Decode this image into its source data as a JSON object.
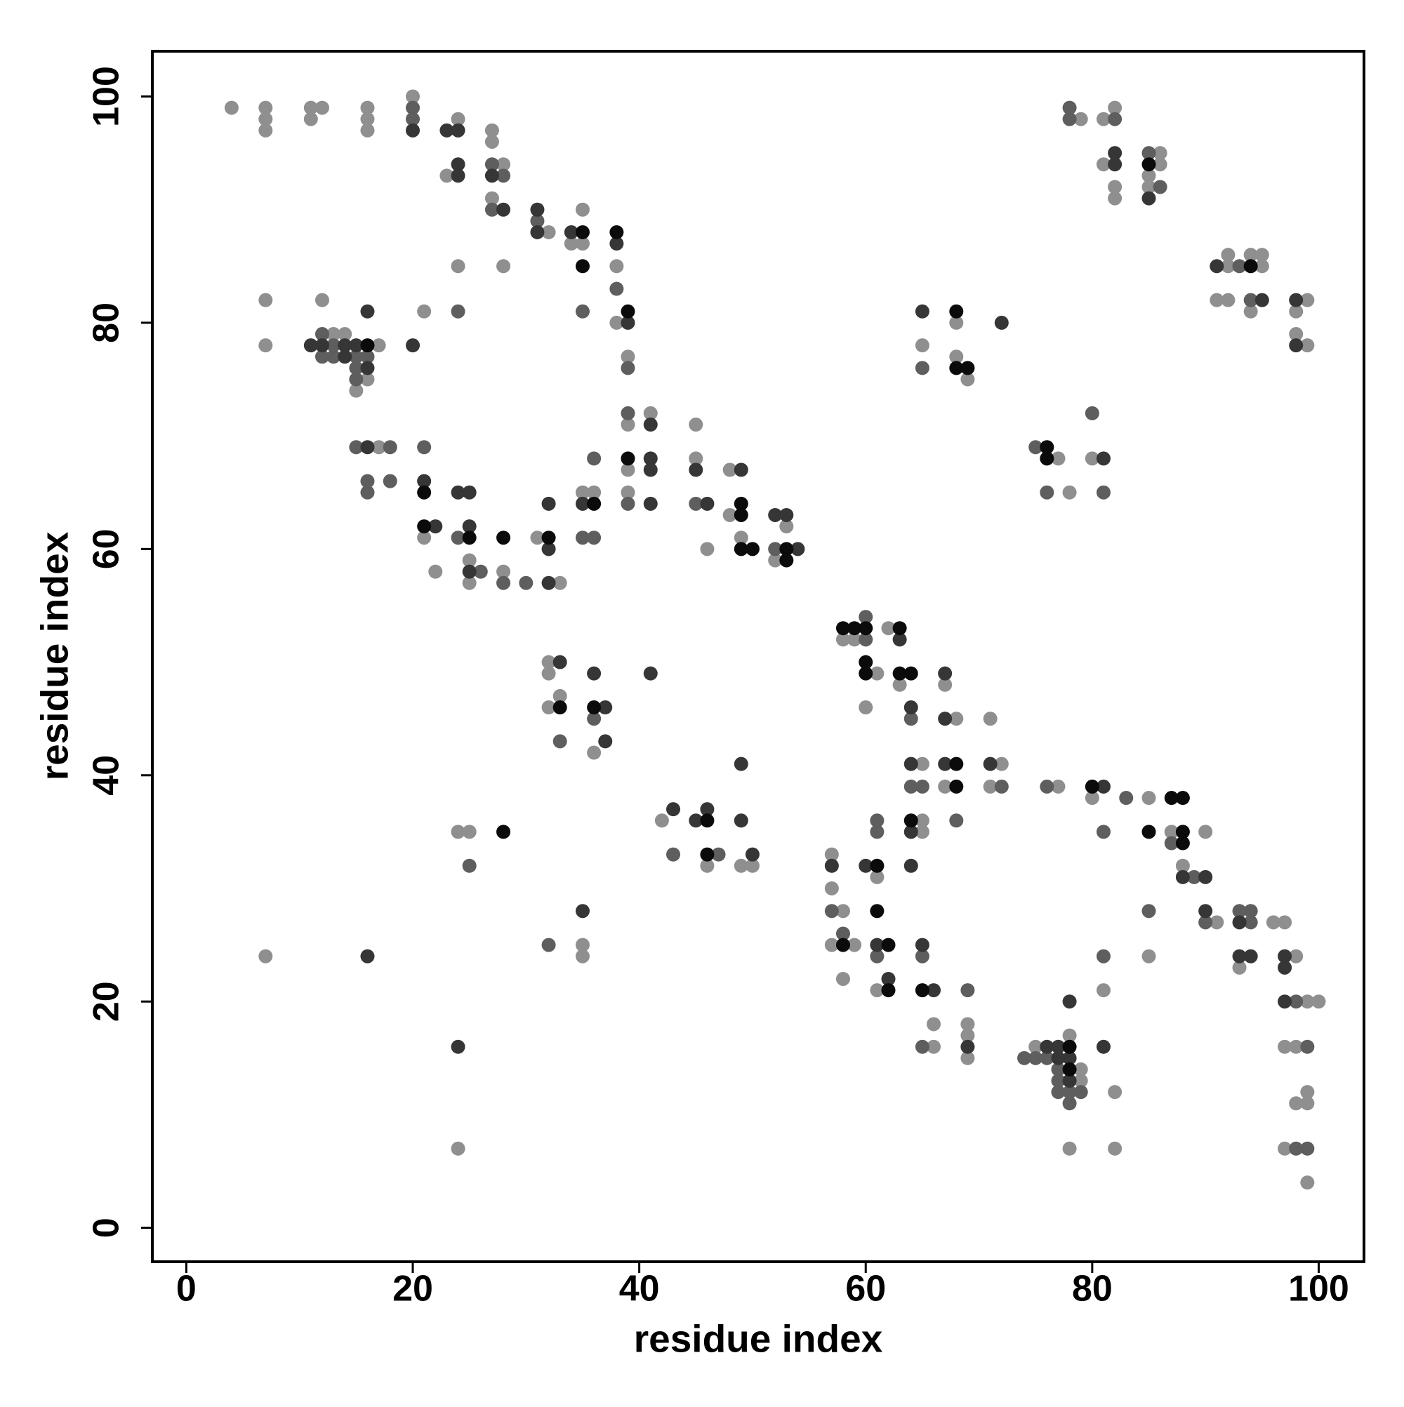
{
  "chart_data": {
    "type": "scatter",
    "xlabel": "residue index",
    "ylabel": "residue index",
    "xlim": [
      -3,
      104
    ],
    "ylim": [
      -3,
      104
    ],
    "xticks": [
      0,
      20,
      40,
      60,
      80,
      100
    ],
    "yticks": [
      0,
      20,
      40,
      60,
      80,
      100
    ],
    "series": [
      {
        "color": "#8f8f8f",
        "x": [
          4,
          7,
          7,
          7,
          11,
          11,
          12,
          16,
          16,
          16,
          20,
          24,
          23,
          27,
          27,
          28,
          27,
          32,
          35,
          34,
          35,
          38,
          38,
          39,
          24,
          28,
          7,
          7,
          12,
          21,
          17,
          13,
          14,
          15,
          16,
          17,
          21,
          22,
          25,
          25,
          28,
          31,
          33,
          35,
          36,
          39,
          39,
          39,
          41,
          45,
          45,
          46,
          48,
          48,
          49,
          53,
          52,
          32,
          32,
          33,
          32,
          36,
          24,
          25,
          42,
          46,
          49,
          50,
          7,
          35,
          35,
          24,
          58,
          59,
          61,
          60,
          62,
          63,
          67,
          68,
          71,
          65,
          67,
          72,
          71,
          65,
          65,
          57,
          57,
          61,
          58,
          57,
          59,
          58,
          61,
          66,
          66,
          69,
          69,
          69,
          77,
          80,
          85,
          87,
          90,
          88,
          91,
          96,
          97,
          93,
          98,
          99,
          100,
          97,
          98,
          99,
          98,
          99,
          97,
          99,
          85,
          81,
          82,
          82,
          78,
          75,
          78,
          79,
          79,
          68,
          65,
          68,
          69,
          77,
          78,
          80,
          79,
          81,
          82,
          81,
          82,
          82,
          86,
          86,
          85,
          85,
          92,
          92,
          94,
          95,
          95,
          91,
          92,
          94,
          99,
          98,
          98,
          99
        ],
        "y": [
          99,
          99,
          98,
          97,
          99,
          98,
          99,
          99,
          98,
          97,
          100,
          98,
          93,
          97,
          96,
          94,
          91,
          88,
          90,
          87,
          87,
          85,
          80,
          77,
          85,
          85,
          82,
          78,
          82,
          81,
          78,
          79,
          79,
          74,
          75,
          69,
          61,
          58,
          59,
          57,
          58,
          61,
          57,
          65,
          65,
          71,
          67,
          65,
          72,
          71,
          68,
          60,
          67,
          63,
          61,
          62,
          59,
          50,
          49,
          47,
          46,
          42,
          35,
          35,
          36,
          32,
          32,
          32,
          24,
          25,
          24,
          7,
          52,
          52,
          49,
          46,
          53,
          48,
          48,
          45,
          45,
          41,
          39,
          41,
          39,
          36,
          35,
          33,
          30,
          31,
          28,
          25,
          25,
          22,
          21,
          18,
          16,
          18,
          17,
          15,
          39,
          38,
          38,
          35,
          35,
          32,
          27,
          27,
          27,
          23,
          24,
          20,
          20,
          16,
          16,
          12,
          11,
          11,
          7,
          4,
          24,
          21,
          12,
          7,
          7,
          16,
          17,
          14,
          13,
          80,
          78,
          77,
          75,
          68,
          65,
          68,
          98,
          98,
          99,
          94,
          92,
          91,
          95,
          94,
          93,
          92,
          86,
          85,
          86,
          86,
          85,
          82,
          82,
          81,
          82,
          81,
          79,
          78
        ]
      },
      {
        "color": "#5e5e5e",
        "x": [
          20,
          20,
          27,
          28,
          27,
          31,
          38,
          39,
          24,
          35,
          12,
          12,
          13,
          13,
          15,
          15,
          15,
          16,
          15,
          18,
          16,
          18,
          16,
          21,
          24,
          26,
          28,
          30,
          36,
          35,
          36,
          39,
          39,
          45,
          52,
          33,
          36,
          25,
          43,
          47,
          32,
          60,
          60,
          64,
          64,
          65,
          72,
          68,
          61,
          61,
          57,
          58,
          61,
          65,
          65,
          69,
          76,
          83,
          81,
          87,
          89,
          85,
          90,
          93,
          94,
          94,
          98,
          99,
          98,
          99,
          81,
          74,
          75,
          76,
          78,
          78,
          77,
          77,
          77,
          79,
          65,
          75,
          76,
          80,
          81,
          78,
          78,
          82,
          85,
          86,
          93,
          94
        ],
        "y": [
          99,
          98,
          94,
          93,
          90,
          89,
          83,
          76,
          81,
          81,
          79,
          77,
          78,
          77,
          77,
          76,
          75,
          77,
          69,
          69,
          66,
          66,
          65,
          69,
          61,
          58,
          57,
          57,
          68,
          61,
          61,
          72,
          64,
          64,
          60,
          43,
          45,
          32,
          33,
          33,
          25,
          54,
          52,
          45,
          39,
          39,
          39,
          36,
          36,
          35,
          28,
          26,
          24,
          24,
          16,
          21,
          39,
          38,
          35,
          34,
          31,
          28,
          27,
          28,
          28,
          27,
          20,
          16,
          7,
          7,
          24,
          15,
          15,
          15,
          12,
          11,
          14,
          13,
          12,
          12,
          76,
          69,
          65,
          72,
          65,
          99,
          98,
          98,
          95,
          92,
          85,
          82
        ]
      },
      {
        "color": "#363636",
        "x": [
          20,
          23,
          24,
          24,
          24,
          27,
          28,
          31,
          31,
          34,
          38,
          39,
          16,
          20,
          11,
          12,
          14,
          14,
          15,
          16,
          16,
          21,
          22,
          24,
          25,
          25,
          25,
          32,
          32,
          32,
          35,
          41,
          41,
          41,
          41,
          45,
          46,
          49,
          52,
          53,
          54,
          33,
          36,
          37,
          37,
          41,
          43,
          45,
          46,
          49,
          49,
          50,
          16,
          35,
          24,
          63,
          64,
          67,
          67,
          64,
          67,
          71,
          64,
          57,
          60,
          64,
          61,
          62,
          66,
          65,
          69,
          81,
          88,
          90,
          90,
          93,
          93,
          94,
          97,
          97,
          97,
          81,
          76,
          77,
          77,
          78,
          78,
          78,
          65,
          72,
          81,
          82,
          82,
          85,
          91,
          95,
          98,
          98
        ],
        "y": [
          97,
          97,
          97,
          94,
          93,
          93,
          90,
          90,
          88,
          88,
          87,
          80,
          81,
          78,
          78,
          78,
          78,
          77,
          78,
          76,
          69,
          66,
          62,
          65,
          65,
          62,
          58,
          60,
          64,
          57,
          64,
          71,
          68,
          67,
          64,
          67,
          64,
          67,
          63,
          63,
          60,
          50,
          49,
          46,
          43,
          49,
          37,
          36,
          37,
          41,
          36,
          33,
          24,
          28,
          16,
          52,
          46,
          49,
          45,
          41,
          41,
          41,
          35,
          32,
          32,
          32,
          25,
          22,
          21,
          25,
          16,
          39,
          31,
          31,
          28,
          27,
          24,
          24,
          24,
          23,
          20,
          16,
          16,
          16,
          15,
          20,
          15,
          13,
          81,
          80,
          68,
          95,
          94,
          91,
          85,
          82,
          82,
          78
        ]
      },
      {
        "color": "#0b0b0b",
        "x": [
          35,
          35,
          38,
          39,
          16,
          21,
          21,
          25,
          28,
          32,
          36,
          39,
          49,
          49,
          49,
          50,
          53,
          53,
          33,
          36,
          28,
          46,
          46,
          58,
          59,
          60,
          60,
          60,
          63,
          63,
          64,
          68,
          68,
          64,
          61,
          58,
          61,
          62,
          62,
          65,
          80,
          87,
          88,
          85,
          88,
          88,
          78,
          78,
          68,
          68,
          69,
          76,
          76,
          85,
          94
        ],
        "y": [
          88,
          85,
          88,
          81,
          78,
          65,
          62,
          61,
          61,
          61,
          64,
          68,
          64,
          63,
          60,
          60,
          60,
          59,
          46,
          46,
          35,
          36,
          33,
          53,
          53,
          53,
          50,
          49,
          53,
          49,
          49,
          41,
          39,
          36,
          32,
          25,
          28,
          25,
          21,
          21,
          39,
          38,
          38,
          35,
          35,
          34,
          16,
          14,
          81,
          76,
          76,
          69,
          68,
          94,
          85
        ]
      }
    ]
  }
}
